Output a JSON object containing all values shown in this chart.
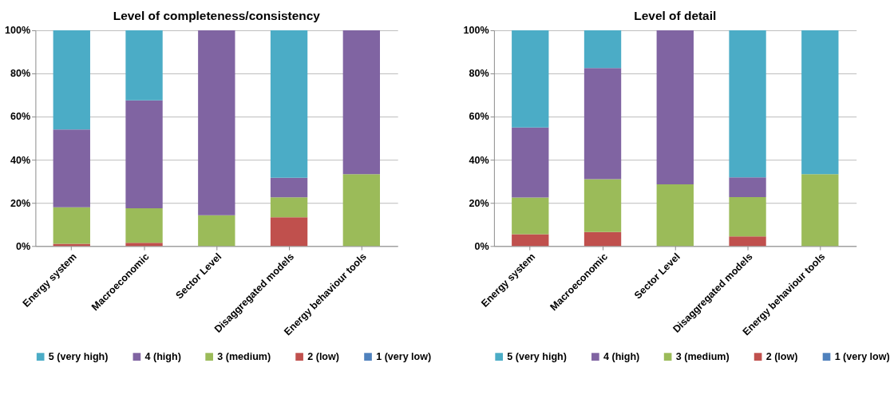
{
  "chart_data": [
    {
      "type": "bar",
      "title": "Level of completeness/consistency",
      "stacked": true,
      "grid": "y",
      "legend": "bottom",
      "categories": [
        "Energy system",
        "Macroeconomic",
        "Sector Level",
        "Disaggregated models",
        "Energy behaviour tools"
      ],
      "ylim": [
        0,
        100
      ],
      "yticks": [
        {
          "value": 0,
          "label": "0%"
        },
        {
          "value": 20,
          "label": "20%"
        },
        {
          "value": 40,
          "label": "40%"
        },
        {
          "value": 60,
          "label": "60%"
        },
        {
          "value": 80,
          "label": "80%"
        },
        {
          "value": 100,
          "label": "100%"
        }
      ],
      "series": [
        {
          "name": "1 (very low)",
          "color": "#4f81bd",
          "values": [
            0,
            0,
            0,
            0,
            0
          ]
        },
        {
          "name": "2 (low)",
          "color": "#c0504d",
          "values": [
            1,
            1.5,
            0,
            13.3,
            0
          ]
        },
        {
          "name": "3 (medium)",
          "color": "#9bbb59",
          "values": [
            17,
            16,
            14.3,
            9.3,
            33.3
          ]
        },
        {
          "name": "4 (high)",
          "color": "#8064a2",
          "values": [
            36,
            50,
            85.7,
            9.1,
            66.7
          ]
        },
        {
          "name": "5 (very high)",
          "color": "#4bacc6",
          "values": [
            46,
            32.5,
            0,
            68.3,
            0
          ]
        }
      ]
    },
    {
      "type": "bar",
      "title": "Level of detail",
      "stacked": true,
      "grid": "y",
      "legend": "bottom",
      "categories": [
        "Energy system",
        "Macroeconomic",
        "Sector Level",
        "Disaggregated models",
        "Energy behaviour tools"
      ],
      "ylim": [
        0,
        100
      ],
      "yticks": [
        {
          "value": 0,
          "label": "0%"
        },
        {
          "value": 20,
          "label": "20%"
        },
        {
          "value": 40,
          "label": "40%"
        },
        {
          "value": 60,
          "label": "60%"
        },
        {
          "value": 80,
          "label": "80%"
        },
        {
          "value": 100,
          "label": "100%"
        }
      ],
      "series": [
        {
          "name": "1 (very low)",
          "color": "#4f81bd",
          "values": [
            0,
            0,
            0,
            0,
            0
          ]
        },
        {
          "name": "2 (low)",
          "color": "#c0504d",
          "values": [
            5.5,
            6.5,
            0,
            4.5,
            0
          ]
        },
        {
          "name": "3 (medium)",
          "color": "#9bbb59",
          "values": [
            17,
            24.5,
            28.6,
            18.2,
            33.3
          ]
        },
        {
          "name": "4 (high)",
          "color": "#8064a2",
          "values": [
            32.5,
            51.5,
            71.4,
            9.1,
            0
          ]
        },
        {
          "name": "5 (very high)",
          "color": "#4bacc6",
          "values": [
            45,
            17.5,
            0,
            68.2,
            66.7
          ]
        }
      ]
    }
  ]
}
